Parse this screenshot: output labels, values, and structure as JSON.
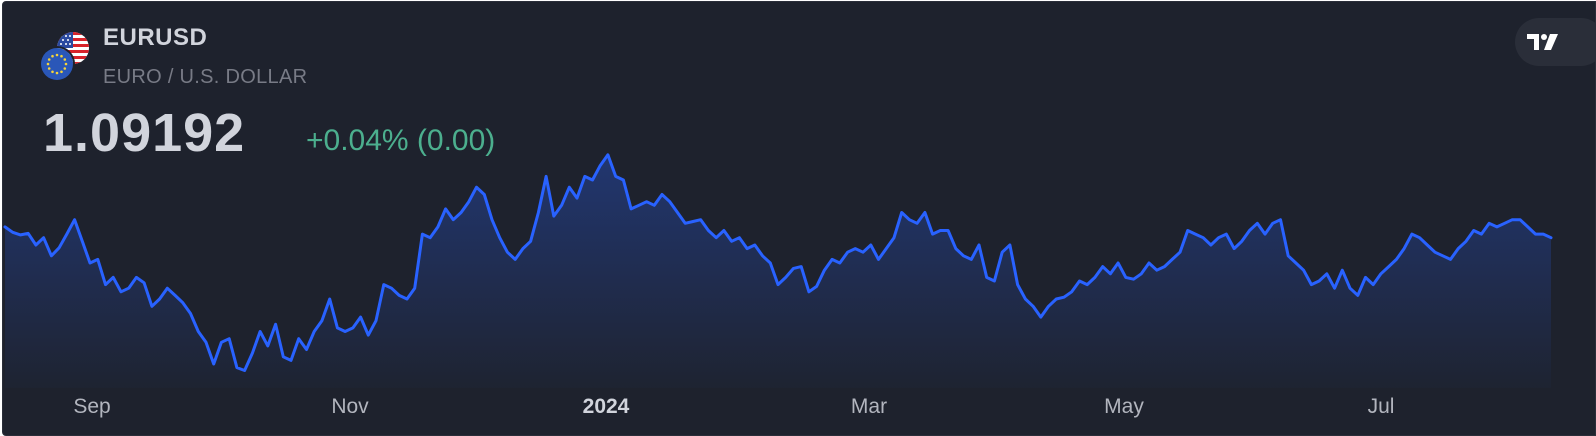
{
  "header": {
    "symbol": "EURUSD",
    "description": "EURO / U.S. DOLLAR",
    "price": "1.09192",
    "change": "+0.04% (0.00)"
  },
  "icons": {
    "base_flag": "eu-flag-icon",
    "quote_flag": "us-flag-icon",
    "brand": "tradingview-logo-icon"
  },
  "colors": {
    "background": "#1e222d",
    "line": "#2962ff",
    "positive_change": "#4caf8e",
    "text_primary": "#d1d4dc",
    "text_secondary": "#787b86"
  },
  "chart_data": {
    "type": "area",
    "xlabel": "",
    "ylabel": "",
    "x_ticks": [
      {
        "label": "Sep",
        "major": false
      },
      {
        "label": "Nov",
        "major": false
      },
      {
        "label": "2024",
        "major": true
      },
      {
        "label": "Mar",
        "major": false
      },
      {
        "label": "May",
        "major": false
      },
      {
        "label": "Jul",
        "major": false
      }
    ],
    "ylim": [
      1.043,
      1.104
    ],
    "series": [
      {
        "values": [
          1.086,
          1.0845,
          1.0838,
          1.0842,
          1.081,
          1.083,
          1.078,
          1.0802,
          1.084,
          1.088,
          1.082,
          1.076,
          1.077,
          1.07,
          1.072,
          1.068,
          1.069,
          1.072,
          1.0705,
          1.064,
          1.066,
          1.069,
          1.067,
          1.065,
          1.062,
          1.057,
          1.054,
          1.048,
          1.054,
          1.055,
          1.047,
          1.0462,
          1.051,
          1.057,
          1.053,
          1.059,
          1.05,
          1.049,
          1.055,
          1.052,
          1.057,
          1.06,
          1.066,
          1.058,
          1.057,
          1.058,
          1.061,
          1.056,
          1.06,
          1.07,
          1.069,
          1.067,
          1.066,
          1.069,
          1.084,
          1.083,
          1.086,
          1.091,
          1.088,
          1.09,
          1.093,
          1.097,
          1.095,
          1.088,
          1.083,
          1.079,
          1.077,
          1.08,
          1.082,
          1.09,
          1.1,
          1.089,
          1.092,
          1.097,
          1.094,
          1.1,
          1.099,
          1.103,
          1.106,
          1.1,
          1.099,
          1.091,
          1.092,
          1.093,
          1.092,
          1.095,
          1.093,
          1.09,
          1.087,
          1.0875,
          1.088,
          1.085,
          1.083,
          1.085,
          1.082,
          1.083,
          1.08,
          1.081,
          1.078,
          1.076,
          1.07,
          1.072,
          1.0745,
          1.075,
          1.068,
          1.0695,
          1.074,
          1.077,
          1.076,
          1.079,
          1.08,
          1.079,
          1.081,
          1.077,
          1.08,
          1.083,
          1.09,
          1.088,
          1.087,
          1.09,
          1.084,
          1.085,
          1.085,
          1.08,
          1.078,
          1.077,
          1.081,
          1.072,
          1.071,
          1.079,
          1.081,
          1.07,
          1.066,
          1.064,
          1.061,
          1.064,
          1.066,
          1.0665,
          1.068,
          1.071,
          1.07,
          1.072,
          1.075,
          1.073,
          1.076,
          1.072,
          1.0715,
          1.073,
          1.076,
          1.074,
          1.075,
          1.077,
          1.079,
          1.085,
          1.084,
          1.083,
          1.081,
          1.083,
          1.084,
          1.08,
          1.082,
          1.085,
          1.087,
          1.084,
          1.087,
          1.088,
          1.078,
          1.076,
          1.074,
          1.07,
          1.071,
          1.073,
          1.069,
          1.074,
          1.069,
          1.067,
          1.072,
          1.07,
          1.073,
          1.075,
          1.077,
          1.08,
          1.084,
          1.083,
          1.081,
          1.079,
          1.078,
          1.077,
          1.08,
          1.082,
          1.085,
          1.084,
          1.087,
          1.086,
          1.087,
          1.088,
          1.088,
          1.086,
          1.084,
          1.084,
          1.083
        ]
      }
    ]
  }
}
